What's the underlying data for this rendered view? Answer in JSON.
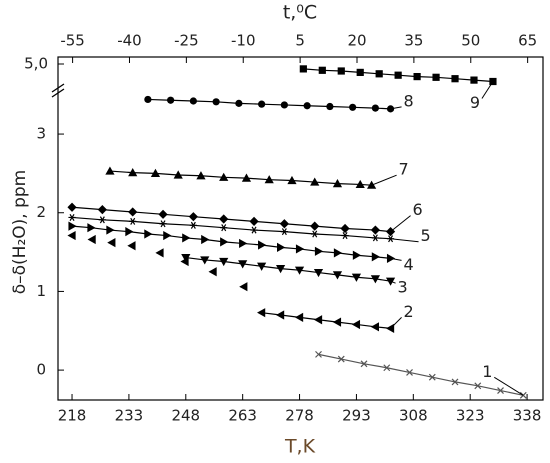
{
  "chart_data": {
    "type": "scatter",
    "x_label": "T,K",
    "x2_label": "t,⁰C",
    "y_label": "δ–δ(H₂O), ppm",
    "xlim": [
      214.3,
      342.2
    ],
    "xticks": [
      218,
      233,
      248,
      263,
      278,
      293,
      308,
      323,
      338
    ],
    "x2lim": [
      -58.85,
      69.05
    ],
    "x2ticks": [
      -55,
      -40,
      -25,
      -10,
      5,
      20,
      35,
      50,
      65
    ],
    "ylim": [
      -0.38,
      3.56
    ],
    "yticks": [
      0,
      1,
      2,
      3
    ],
    "ylim_upper": [
      4.7,
      5.1
    ],
    "yticks_upper": [
      {
        "value": 5.0,
        "label": "5,0"
      }
    ],
    "series": [
      {
        "name": "1",
        "color": "#555555",
        "marker": "x",
        "line": true,
        "x": [
          283,
          289,
          295,
          301,
          307,
          313,
          319,
          325,
          331,
          337
        ],
        "values": [
          0.2,
          0.14,
          0.08,
          0.03,
          -0.03,
          -0.09,
          -0.15,
          -0.2,
          -0.26,
          -0.32
        ]
      },
      {
        "name": "2",
        "color": "#000000",
        "marker": "left",
        "line": true,
        "x": [
          268,
          273,
          278,
          283,
          288,
          293,
          298,
          302
        ],
        "values": [
          0.73,
          0.7,
          0.67,
          0.64,
          0.61,
          0.58,
          0.55,
          0.53
        ]
      },
      {
        "name": "3",
        "color": "#000000",
        "marker": "down",
        "line": true,
        "x": [
          248,
          253,
          258,
          263,
          268,
          273,
          278,
          283,
          288,
          293,
          298,
          302
        ],
        "values": [
          1.43,
          1.4,
          1.38,
          1.35,
          1.32,
          1.29,
          1.27,
          1.24,
          1.21,
          1.18,
          1.16,
          1.13
        ]
      },
      {
        "name": "4",
        "color": "#000000",
        "marker": "right",
        "line": true,
        "x": [
          218,
          223,
          228,
          233,
          238,
          243,
          248,
          253,
          258,
          263,
          268,
          273,
          278,
          283,
          288,
          293,
          298,
          302
        ],
        "values": [
          1.83,
          1.81,
          1.78,
          1.76,
          1.73,
          1.71,
          1.68,
          1.66,
          1.63,
          1.61,
          1.59,
          1.56,
          1.54,
          1.51,
          1.49,
          1.46,
          1.44,
          1.42
        ]
      },
      {
        "name": "5",
        "color": "#000000",
        "marker": "star",
        "line": true,
        "x": [
          218,
          226,
          234,
          242,
          250,
          258,
          266,
          274,
          282,
          290,
          298,
          302
        ],
        "values": [
          1.94,
          1.91,
          1.89,
          1.86,
          1.84,
          1.81,
          1.78,
          1.76,
          1.73,
          1.71,
          1.68,
          1.67
        ]
      },
      {
        "name": "6",
        "color": "#000000",
        "marker": "diamond",
        "line": true,
        "x": [
          218,
          226,
          234,
          242,
          250,
          258,
          266,
          274,
          282,
          290,
          298,
          302
        ],
        "values": [
          2.07,
          2.04,
          2.01,
          1.98,
          1.95,
          1.92,
          1.89,
          1.86,
          1.83,
          1.8,
          1.78,
          1.76
        ]
      },
      {
        "name": "7",
        "color": "#000000",
        "marker": "up",
        "line": true,
        "x": [
          228,
          234,
          240,
          246,
          252,
          258,
          264,
          270,
          276,
          282,
          288,
          294,
          297
        ],
        "values": [
          2.53,
          2.51,
          2.5,
          2.48,
          2.47,
          2.45,
          2.44,
          2.42,
          2.41,
          2.39,
          2.37,
          2.36,
          2.35
        ]
      },
      {
        "name": "8",
        "color": "#000000",
        "marker": "circle",
        "line": true,
        "x": [
          238,
          244,
          250,
          256,
          262,
          268,
          274,
          280,
          286,
          292,
          298,
          302
        ],
        "values": [
          3.44,
          3.43,
          3.42,
          3.41,
          3.39,
          3.38,
          3.37,
          3.36,
          3.35,
          3.34,
          3.33,
          3.32
        ]
      },
      {
        "name": "9",
        "color": "#000000",
        "marker": "square",
        "line": true,
        "axis": "upper",
        "x": [
          279,
          284,
          289,
          294,
          299,
          304,
          309,
          314,
          319,
          324,
          329
        ],
        "values": [
          4.93,
          4.91,
          4.9,
          4.88,
          4.86,
          4.84,
          4.82,
          4.81,
          4.79,
          4.77,
          4.75
        ]
      },
      {
        "color": "#000000",
        "marker": "left",
        "line": false,
        "x": [
          218,
          223.3,
          228.5,
          233.8,
          241.2,
          247.8,
          255.2,
          263.3
        ],
        "values": [
          1.71,
          1.66,
          1.62,
          1.58,
          1.49,
          1.38,
          1.25,
          1.06
        ]
      }
    ]
  }
}
